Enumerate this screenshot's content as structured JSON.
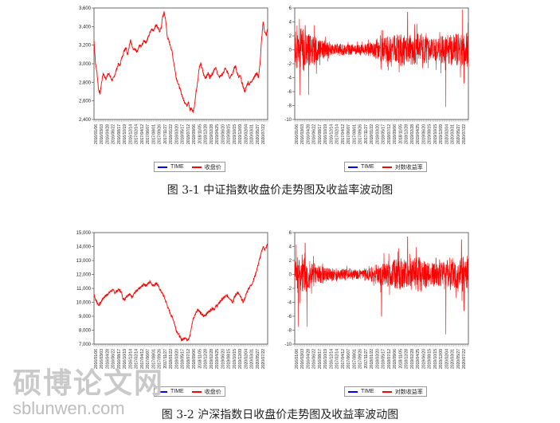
{
  "figures": [
    {
      "caption": "图 3-1    中证指数收盘价走势图及收益率波动图"
    },
    {
      "caption": "图 3-2    沪深指数日收盘价走势图及收益率波动图"
    }
  ],
  "watermark": {
    "line1": "硕博论文网",
    "line2": "sblunwen.com"
  },
  "colors": {
    "price": "#ff0000",
    "time": "#0000ff"
  },
  "chart_data": [
    {
      "type": "line",
      "title": "",
      "legend": [
        "TIME",
        "收盘价"
      ],
      "ylim": [
        2400,
        3600
      ],
      "yticks": [
        "2,400",
        "2,600",
        "2,800",
        "3,000",
        "3,200",
        "3,400",
        "3,600"
      ],
      "xticks": [
        "2016/01/06",
        "2016/03/03",
        "2016/04/28",
        "2016/06/22",
        "2016/08/17",
        "2016/10/19",
        "2016/12/14",
        "2017/02/14",
        "2017/04/12",
        "2017/06/07",
        "2017/08/01",
        "2017/09/26",
        "2017/11/27",
        "2018/01/22",
        "2018/03/20",
        "2018/05/17",
        "2018/07/12",
        "2018/09/06",
        "2018/11/05",
        "2018/12/28",
        "2019/02/28",
        "2019/04/25",
        "2019/06/20",
        "2019/08/15",
        "2019/10/15",
        "2019/12/09",
        "2020/02/04",
        "2020/03/31",
        "2020/05/27",
        "2020/07/22"
      ],
      "x": [
        0,
        10,
        20,
        30,
        40,
        50,
        60,
        70,
        80,
        90,
        100,
        110,
        120,
        130,
        140,
        150,
        160,
        170,
        180,
        190,
        200,
        210,
        220,
        230,
        240,
        250,
        260,
        270,
        280,
        290,
        300,
        310,
        320,
        330,
        340,
        350,
        360,
        370,
        380,
        390,
        400,
        410,
        420,
        430,
        440,
        450,
        460,
        470,
        480,
        490,
        500,
        510,
        520,
        530,
        540,
        550,
        560,
        570,
        580,
        590,
        600,
        610,
        620,
        630,
        640,
        650,
        660,
        670,
        680,
        690,
        700,
        710,
        720,
        730,
        740,
        750,
        760,
        770,
        780,
        790,
        800,
        810,
        820,
        830,
        840,
        850,
        860,
        870,
        880,
        890,
        900,
        910,
        920,
        930,
        940,
        950,
        960,
        970,
        980,
        990,
        1000,
        1010,
        1020,
        1030,
        1040,
        1050,
        1060,
        1070,
        1080,
        1090,
        1100,
        1110,
        1120,
        1130,
        1140
      ],
      "series": [
        {
          "name": "收盘价",
          "values": [
            3250,
            3000,
            2900,
            2720,
            2680,
            2800,
            2900,
            2860,
            2830,
            2900,
            2880,
            2850,
            2820,
            2850,
            2900,
            2950,
            3000,
            2980,
            3050,
            3100,
            3150,
            3180,
            3100,
            3180,
            3250,
            3200,
            3150,
            3160,
            3120,
            3150,
            3200,
            3180,
            3220,
            3250,
            3230,
            3260,
            3300,
            3350,
            3380,
            3350,
            3400,
            3420,
            3380,
            3350,
            3380,
            3500,
            3550,
            3480,
            3300,
            3250,
            3200,
            3150,
            3050,
            2950,
            2850,
            2800,
            2750,
            2700,
            2650,
            2600,
            2580,
            2550,
            2600,
            2500,
            2520,
            2480,
            2550,
            2700,
            2800,
            2950,
            3000,
            2950,
            2880,
            2850,
            2870,
            2900,
            2850,
            2880,
            2900,
            2950,
            2950,
            2900,
            2850,
            2870,
            2880,
            2900,
            2950,
            2920,
            2900,
            2850,
            2880,
            2900,
            2950,
            2970,
            2900,
            2850,
            2870,
            2800,
            2750,
            2700,
            2750,
            2800,
            2780,
            2800,
            2830,
            2850,
            2880,
            2900,
            2850,
            3000,
            3250,
            3450,
            3350,
            3300,
            3380
          ]
        }
      ]
    },
    {
      "type": "line",
      "title": "",
      "legend": [
        "TIME",
        "对数收益率"
      ],
      "ylim": [
        -10,
        6
      ],
      "yticks": [
        "-10",
        "-8",
        "-6",
        "-4",
        "-2",
        "0",
        "2",
        "4",
        "6"
      ],
      "xticks": [
        "2016/01/06",
        "2016/03/03",
        "2016/04/28",
        "2016/06/22",
        "2016/08/17",
        "2016/10/19",
        "2016/12/14",
        "2017/02/14",
        "2017/04/12",
        "2017/06/07",
        "2017/08/01",
        "2017/09/26",
        "2017/11/27",
        "2018/01/22",
        "2018/03/20",
        "2018/05/17",
        "2018/07/12",
        "2018/09/06",
        "2018/11/05",
        "2018/12/28",
        "2019/02/28",
        "2019/04/25",
        "2019/06/20",
        "2019/08/15",
        "2019/10/15",
        "2019/12/09",
        "2020/02/04",
        "2020/03/31",
        "2020/05/27",
        "2020/07/22"
      ],
      "amplitude": [
        3.2,
        3.5,
        2.6,
        2.2,
        1.6,
        1.2,
        1.0,
        1.0,
        0.9,
        0.9,
        0.8,
        0.8,
        1.0,
        1.2,
        1.8,
        2.0,
        2.2,
        2.4,
        2.6,
        2.0,
        2.4,
        2.6,
        2.2,
        1.8,
        1.8,
        2.2,
        2.4,
        2.6,
        2.6,
        2.8
      ],
      "spikes": [
        {
          "x": 0.03,
          "y": -6.5
        },
        {
          "x": 0.08,
          "y": -6.5
        },
        {
          "x": 0.06,
          "y": 3.5
        },
        {
          "x": 0.65,
          "y": 5.4
        },
        {
          "x": 0.87,
          "y": -8.2
        },
        {
          "x": 0.965,
          "y": 5.8
        },
        {
          "x": 0.975,
          "y": -4.8
        }
      ],
      "series": [
        {
          "name": "对数收益率"
        }
      ]
    },
    {
      "type": "line",
      "title": "",
      "legend": [
        "TIME",
        "收盘价"
      ],
      "ylim": [
        7000,
        15000
      ],
      "yticks": [
        "7,000",
        "8,000",
        "9,000",
        "10,000",
        "11,000",
        "12,000",
        "13,000",
        "14,000",
        "15,000"
      ],
      "xticks": [
        "2016/01/06",
        "2016/03/03",
        "2016/04/28",
        "2016/06/22",
        "2016/08/17",
        "2016/10/19",
        "2016/12/14",
        "2017/02/14",
        "2017/04/12",
        "2017/06/07",
        "2017/08/01",
        "2017/09/26",
        "2017/11/27",
        "2018/01/22",
        "2018/03/20",
        "2018/05/17",
        "2018/07/12",
        "2018/09/06",
        "2018/11/05",
        "2018/12/28",
        "2019/02/28",
        "2019/04/25",
        "2019/06/20",
        "2019/08/15",
        "2019/10/15",
        "2019/12/09",
        "2020/02/04",
        "2020/03/31",
        "2020/05/27",
        "2020/07/22"
      ],
      "x": [
        0,
        10,
        20,
        30,
        40,
        50,
        60,
        70,
        80,
        90,
        100,
        110,
        120,
        130,
        140,
        150,
        160,
        170,
        180,
        190,
        200,
        210,
        220,
        230,
        240,
        250,
        260,
        270,
        280,
        290,
        300,
        310,
        320,
        330,
        340,
        350,
        360,
        370,
        380,
        390,
        400,
        410,
        420,
        430,
        440,
        450,
        460,
        470,
        480,
        490,
        500,
        510,
        520,
        530,
        540,
        550,
        560,
        570,
        580,
        590,
        600,
        610,
        620,
        630,
        640,
        650,
        660,
        670,
        680,
        690,
        700,
        710,
        720,
        730,
        740,
        750,
        760,
        770,
        780,
        790,
        800,
        810,
        820,
        830,
        840,
        850,
        860,
        870,
        880,
        890,
        900,
        910,
        920,
        930,
        940,
        950,
        960,
        970,
        980,
        990,
        1000,
        1010,
        1020,
        1030,
        1040,
        1050,
        1060,
        1070,
        1080,
        1090,
        1100,
        1110,
        1120,
        1130,
        1140
      ],
      "series": [
        {
          "name": "收盘价",
          "values": [
            10600,
            10200,
            10000,
            9800,
            9900,
            10100,
            10300,
            10400,
            10500,
            10600,
            10700,
            10800,
            10900,
            10800,
            10700,
            10800,
            10900,
            10850,
            10700,
            10300,
            10200,
            10400,
            10500,
            10600,
            10500,
            10400,
            10600,
            10700,
            10800,
            10900,
            11000,
            11100,
            11200,
            11300,
            11200,
            11300,
            11400,
            11500,
            11300,
            11200,
            11300,
            11400,
            11200,
            11000,
            10800,
            10600,
            10400,
            10100,
            9800,
            9500,
            9200,
            9000,
            8800,
            8400,
            8000,
            7800,
            7600,
            7400,
            7300,
            7400,
            7500,
            7300,
            7400,
            7600,
            8200,
            8800,
            9000,
            9300,
            9500,
            9400,
            9200,
            9100,
            9000,
            9100,
            9200,
            9300,
            9400,
            9500,
            9600,
            9500,
            9700,
            9800,
            9900,
            10100,
            10200,
            10300,
            10400,
            10500,
            10400,
            10300,
            10200,
            10000,
            10300,
            10500,
            10700,
            10600,
            10400,
            10200,
            10000,
            10300,
            10600,
            10900,
            11100,
            11200,
            11400,
            11700,
            12000,
            12400,
            12800,
            13200,
            13600,
            14000,
            13800,
            13900,
            14200
          ]
        }
      ]
    },
    {
      "type": "line",
      "title": "",
      "legend": [
        "TIME",
        "对数收益率"
      ],
      "ylim": [
        -10,
        6
      ],
      "yticks": [
        "-10",
        "-8",
        "-6",
        "-4",
        "-2",
        "0",
        "2",
        "4",
        "6"
      ],
      "xticks": [
        "2016/01/06",
        "2016/03/03",
        "2016/04/28",
        "2016/06/22",
        "2016/08/17",
        "2016/10/19",
        "2016/12/14",
        "2017/02/14",
        "2017/04/12",
        "2017/06/07",
        "2017/08/01",
        "2017/09/26",
        "2017/11/27",
        "2018/01/22",
        "2018/03/20",
        "2018/05/17",
        "2018/07/12",
        "2018/09/06",
        "2018/11/05",
        "2018/12/28",
        "2019/02/28",
        "2019/04/25",
        "2019/06/20",
        "2019/08/15",
        "2019/10/15",
        "2019/12/09",
        "2020/02/04",
        "2020/03/31",
        "2020/05/27",
        "2020/07/22"
      ],
      "amplitude": [
        3.0,
        3.2,
        2.4,
        2.0,
        1.4,
        1.1,
        1.0,
        1.0,
        0.9,
        0.8,
        0.8,
        0.8,
        1.0,
        1.2,
        1.6,
        2.0,
        2.2,
        2.4,
        2.6,
        2.0,
        2.6,
        2.8,
        2.2,
        2.0,
        2.0,
        2.4,
        2.6,
        2.8,
        2.8,
        3.0
      ],
      "spikes": [
        {
          "x": 0.02,
          "y": -7.5
        },
        {
          "x": 0.07,
          "y": -7.5
        },
        {
          "x": 0.06,
          "y": 4.5
        },
        {
          "x": 0.5,
          "y": -6.0
        },
        {
          "x": 0.65,
          "y": 5.4
        },
        {
          "x": 0.87,
          "y": -8.6
        },
        {
          "x": 0.96,
          "y": 5.0
        },
        {
          "x": 0.975,
          "y": -5.2
        }
      ],
      "series": [
        {
          "name": "对数收益率"
        }
      ]
    }
  ]
}
